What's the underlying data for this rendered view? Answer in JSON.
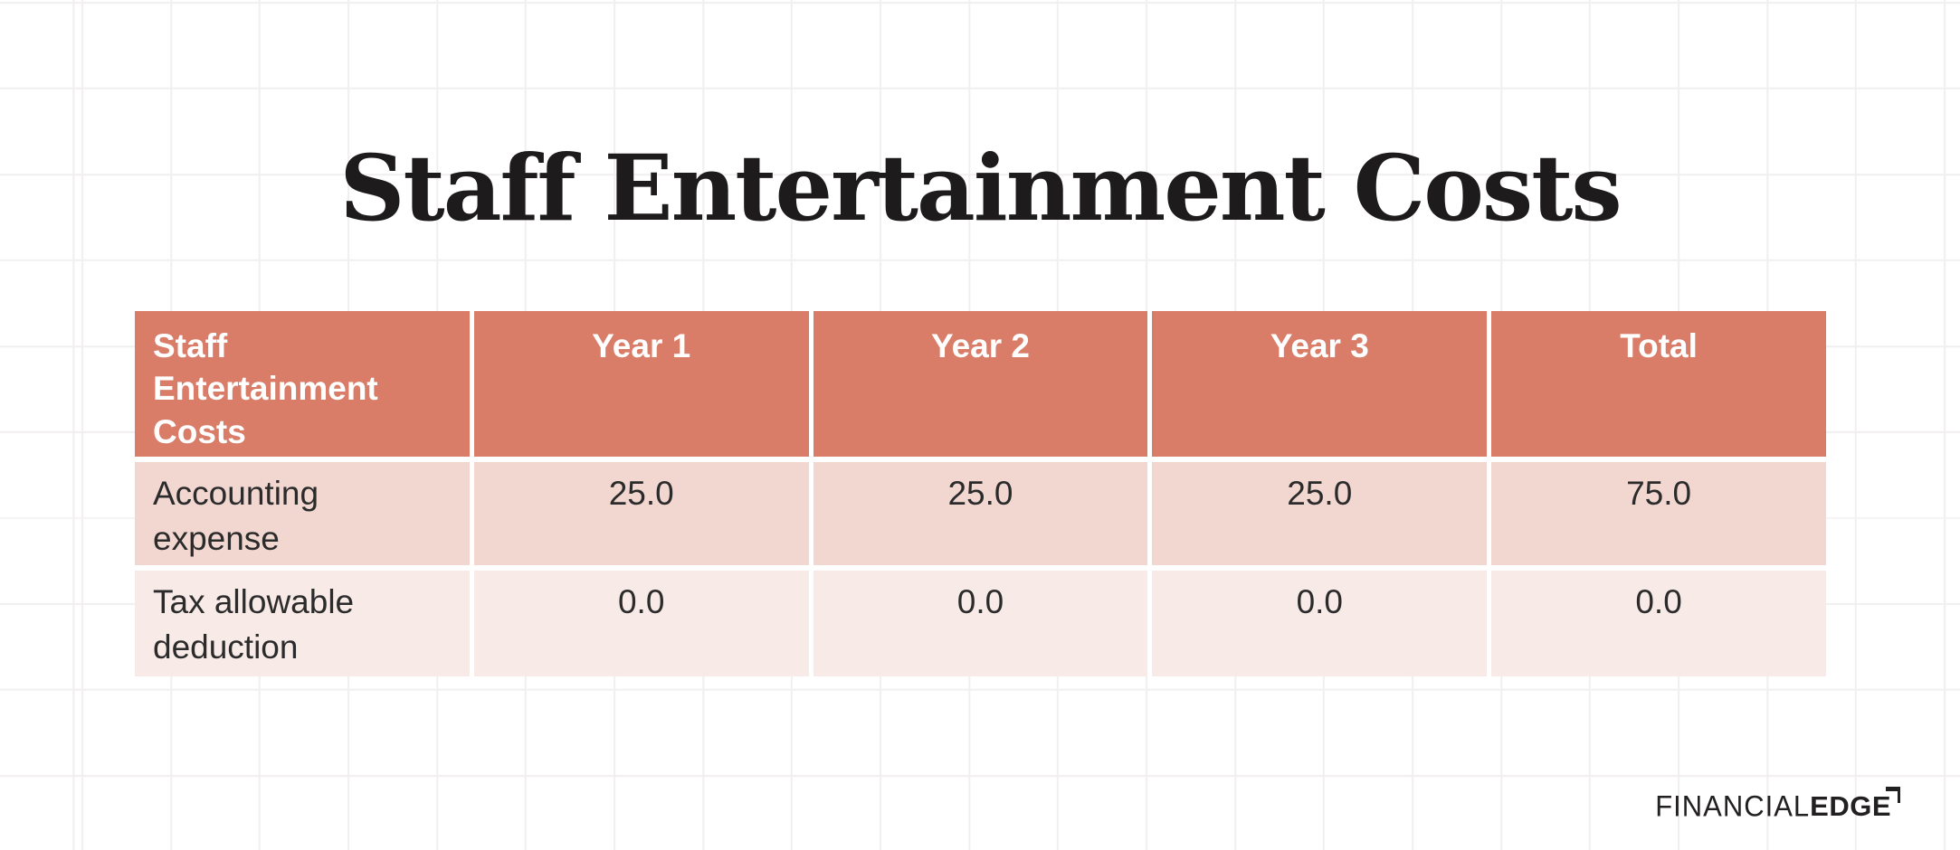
{
  "page": {
    "background_color": "#ffffff",
    "grid_line_color": "#f2eff0"
  },
  "title": "Staff Entertainment Costs",
  "table": {
    "header": {
      "bg_color": "#d97d68",
      "text_color": "#ffffff",
      "columns": [
        "Staff Entertainment Costs",
        "Year 1",
        "Year 2",
        "Year 3",
        "Total"
      ]
    },
    "rows": [
      {
        "label": "Accounting expense",
        "bg_color": "#f2d7d1",
        "values": [
          "25.0",
          "25.0",
          "25.0",
          "75.0"
        ]
      },
      {
        "label": "Tax allowable deduction",
        "bg_color": "#f8eae7",
        "values": [
          "0.0",
          "0.0",
          "0.0",
          "0.0"
        ]
      }
    ],
    "body_text_color": "#2b2b2b"
  },
  "logo": {
    "text_regular": "FINANCIAL",
    "text_bold": "EDGE",
    "color": "#232021"
  },
  "chart_data": {
    "type": "table",
    "title": "Staff Entertainment Costs",
    "columns": [
      "Staff Entertainment Costs",
      "Year 1",
      "Year 2",
      "Year 3",
      "Total"
    ],
    "rows": [
      {
        "label": "Accounting expense",
        "values": [
          25.0,
          25.0,
          25.0,
          75.0
        ]
      },
      {
        "label": "Tax allowable deduction",
        "values": [
          0.0,
          0.0,
          0.0,
          0.0
        ]
      }
    ]
  }
}
